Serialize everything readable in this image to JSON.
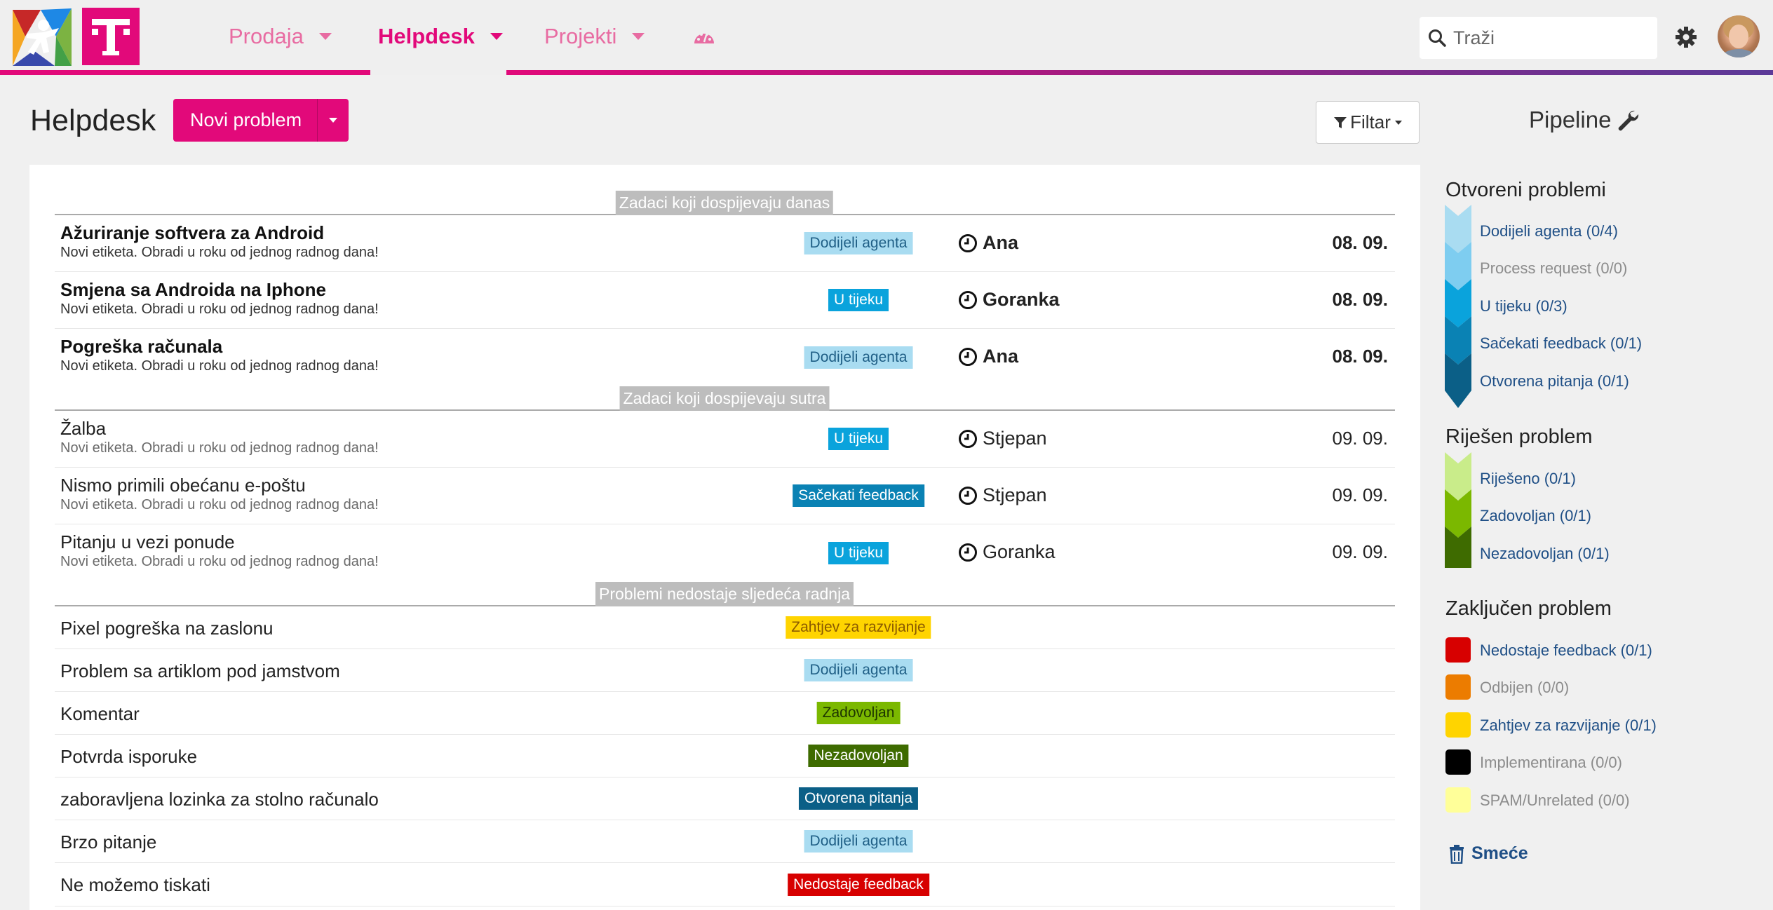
{
  "nav": {
    "items": [
      {
        "label": "Prodaja"
      },
      {
        "label": "Helpdesk"
      },
      {
        "label": "Projekti"
      }
    ],
    "search_placeholder": "Traži"
  },
  "header": {
    "title": "Helpdesk",
    "new_button": "Novi problem",
    "filter_button": "Filtar",
    "pipeline_title": "Pipeline"
  },
  "sections": [
    {
      "label": "Zadaci koji dospijevaju danas"
    },
    {
      "label": "Zadaci koji dospijevaju sutra"
    },
    {
      "label": "Problemi nedostaje sljedeća radnja"
    }
  ],
  "tickets_today": [
    {
      "title": "Ažuriranje softvera za Android",
      "sub": "Novi etiketa. Obradi u roku od jednog radnog dana!",
      "status": "Dodijeli agenta",
      "agent": "Ana",
      "date": "08. 09."
    },
    {
      "title": "Smjena sa Androida na Iphone",
      "sub": "Novi etiketa. Obradi u roku od jednog radnog dana!",
      "status": "U tijeku",
      "agent": "Goranka",
      "date": "08. 09."
    },
    {
      "title": "Pogreška računala",
      "sub": "Novi etiketa. Obradi u roku od jednog radnog dana!",
      "status": "Dodijeli agenta",
      "agent": "Ana",
      "date": "08. 09."
    }
  ],
  "tickets_tomorrow": [
    {
      "title": "Žalba",
      "sub": "Novi etiketa. Obradi u roku od jednog radnog dana!",
      "status": "U tijeku",
      "agent": "Stjepan",
      "date": "09. 09."
    },
    {
      "title": "Nismo primili obećanu e-poštu",
      "sub": "Novi etiketa. Obradi u roku od jednog radnog dana!",
      "status": "Sačekati feedback",
      "agent": "Stjepan",
      "date": "09. 09."
    },
    {
      "title": "Pitanju u vezi ponude",
      "sub": "Novi etiketa. Obradi u roku od jednog radnog dana!",
      "status": "U tijeku",
      "agent": "Goranka",
      "date": "09. 09."
    }
  ],
  "tickets_no_action": [
    {
      "title": "Pixel pogreška na zaslonu",
      "status": "Zahtjev za razvijanje"
    },
    {
      "title": "Problem sa artiklom pod jamstvom",
      "status": "Dodijeli agenta"
    },
    {
      "title": "Komentar",
      "status": "Zadovoljan"
    },
    {
      "title": "Potvrda isporuke",
      "status": "Nezadovoljan"
    },
    {
      "title": "zaboravljena lozinka za stolno računalo",
      "status": "Otvorena pitanja"
    },
    {
      "title": "Brzo pitanje",
      "status": "Dodijeli agenta"
    },
    {
      "title": "Ne možemo tiskati",
      "status": "Nedostaje feedback"
    }
  ],
  "status_colors": {
    "Dodijeli agenta": {
      "bg": "#a9dcf1",
      "fg": "#1f5f86"
    },
    "U tijeku": {
      "bg": "#0aa3dc",
      "fg": "#ffffff"
    },
    "Sačekati feedback": {
      "bg": "#0a82b4",
      "fg": "#ffffff"
    },
    "Otvorena pitanja": {
      "bg": "#0b5f87",
      "fg": "#ffffff"
    },
    "Zahtjev za razvijanje": {
      "bg": "#ffd400",
      "fg": "#8a5a00"
    },
    "Zadovoljan": {
      "bg": "#7bb800",
      "fg": "#1d3500"
    },
    "Nezadovoljan": {
      "bg": "#3e6b00",
      "fg": "#ffffff"
    },
    "Nedostaje feedback": {
      "bg": "#d70000",
      "fg": "#ffffff"
    }
  },
  "sidebar": {
    "groups": [
      {
        "title": "Otvoreni problemi",
        "items": [
          {
            "label": "Dodijeli agenta (0/4)",
            "color": "#a9dcf1",
            "muted": false
          },
          {
            "label": "Process request (0/0)",
            "color": "#7ecdf0",
            "muted": true
          },
          {
            "label": "U tijeku (0/3)",
            "color": "#0aa3dc",
            "muted": false
          },
          {
            "label": "Sačekati feedback (0/1)",
            "color": "#0a82b4",
            "muted": false
          },
          {
            "label": "Otvorena pitanja (0/1)",
            "color": "#0b5f87",
            "muted": false
          }
        ]
      },
      {
        "title": "Riješen problem",
        "items": [
          {
            "label": "Riješeno (0/1)",
            "color": "#c9ec8a",
            "muted": false
          },
          {
            "label": "Zadovoljan (0/1)",
            "color": "#7bb800",
            "muted": false
          },
          {
            "label": "Nezadovoljan (0/1)",
            "color": "#3e6b00",
            "muted": false
          }
        ]
      },
      {
        "title": "Zaključen problem",
        "items": [
          {
            "label": "Nedostaje feedback (0/1)",
            "color": "#d70000",
            "muted": false
          },
          {
            "label": "Odbijen (0/0)",
            "color": "#ec7c00",
            "muted": true
          },
          {
            "label": "Zahtjev za razvijanje (0/1)",
            "color": "#ffd400",
            "muted": false
          },
          {
            "label": "Implementirana (0/0)",
            "color": "#000000",
            "muted": true
          },
          {
            "label": "SPAM/Unrelated (0/0)",
            "color": "#ffff99",
            "muted": true
          }
        ]
      }
    ],
    "trash_label": "Smeće"
  }
}
